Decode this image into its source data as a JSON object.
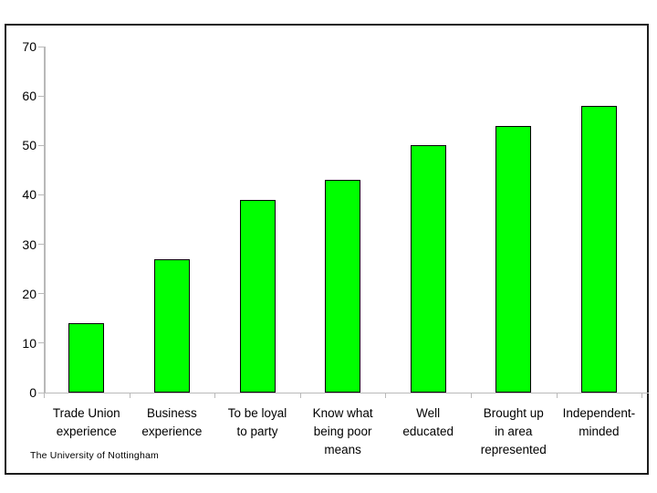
{
  "footer": {
    "text": "The University of Nottingham"
  },
  "chart_data": {
    "type": "bar",
    "title": "",
    "categories": [
      "Trade Union\nexperience",
      "Business\nexperience",
      "To be loyal\nto party",
      "Know what\nbeing poor\nmeans",
      "Well\neducated",
      "Brought up\nin area\nrepresented",
      "Independent-\nminded"
    ],
    "values": [
      14,
      27,
      39,
      43,
      50,
      54,
      58
    ],
    "xlabel": "",
    "ylabel": "",
    "ylim": [
      0,
      70
    ],
    "yticks": [
      0,
      10,
      20,
      30,
      40,
      50,
      60,
      70
    ],
    "grid": false,
    "legend": false,
    "colors": {
      "bar_fill": "#00ff00",
      "bar_border": "#000000",
      "axis": "#b9b9b9",
      "text": "#000000",
      "frame_border": "#1c1c1c",
      "background": "#ffffff"
    }
  }
}
